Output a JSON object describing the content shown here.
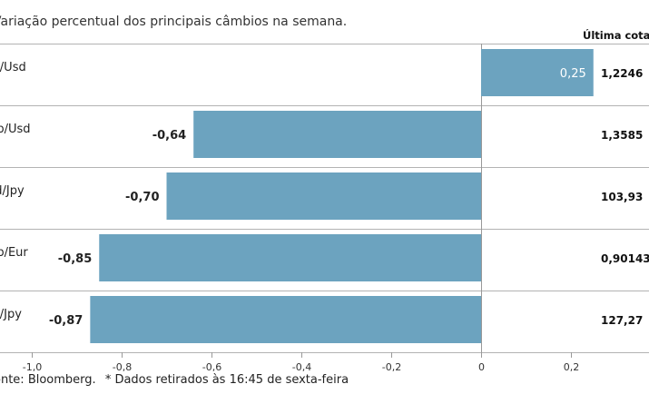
{
  "chart_data": {
    "type": "bar",
    "orientation": "horizontal",
    "subtitle": "Variação percentual dos principais câmbios na semana.",
    "categories": [
      "Eur/Usd",
      "Gbp/Usd",
      "Usd/Jpy",
      "Gbp/Eur",
      "Eur/Jpy"
    ],
    "values": [
      0.25,
      -0.64,
      -0.7,
      -0.85,
      -0.87
    ],
    "value_labels": [
      "0,25",
      "-0,64",
      "-0,70",
      "-0,85",
      "-0,87"
    ],
    "last_quote_header": "Última cotação*",
    "last_quotes": [
      "1,2246",
      "1,3585",
      "103,93",
      "0,90143",
      "127,27"
    ],
    "xlim": [
      -1.0,
      0.3
    ],
    "ticks": [
      -1.0,
      -0.8,
      -0.6,
      -0.4,
      -0.2,
      0,
      0.2
    ],
    "tick_labels": [
      "-1,0",
      "-0,8",
      "-0,6",
      "-0,4",
      "-0,2",
      "0",
      "0,2"
    ],
    "bar_color": "#6ca3bf",
    "grid_color": "#b3b3b3"
  },
  "source": {
    "text": "Fonte: Bloomberg.",
    "note": "* Dados retirados às 16:45 de sexta-feira"
  }
}
